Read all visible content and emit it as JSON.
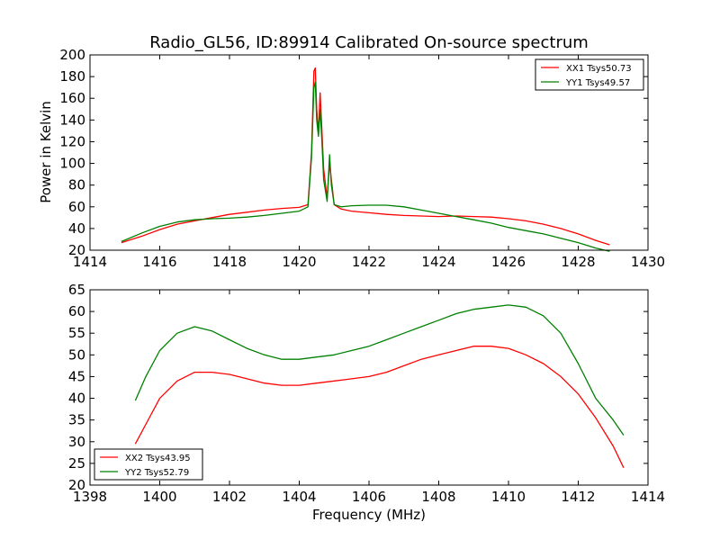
{
  "chart_data": [
    {
      "type": "line",
      "title": "Radio_GL56, ID:89914 Calibrated On-source spectrum",
      "xlabel": "",
      "ylabel": "Power in Kelvin",
      "xlim": [
        1414,
        1430
      ],
      "ylim": [
        20,
        200
      ],
      "xticks": [
        1414,
        1416,
        1418,
        1420,
        1422,
        1424,
        1426,
        1428,
        1430
      ],
      "yticks": [
        20,
        40,
        60,
        80,
        100,
        120,
        140,
        160,
        180,
        200
      ],
      "legend_position": "top-right",
      "series": [
        {
          "name": "XX1 Tsys50.73",
          "color": "#ff0000",
          "x": [
            1414.9,
            1415.5,
            1416.0,
            1416.5,
            1417.0,
            1417.5,
            1418.0,
            1418.5,
            1419.0,
            1419.5,
            1420.0,
            1420.25,
            1420.35,
            1420.42,
            1420.46,
            1420.5,
            1420.55,
            1420.6,
            1420.65,
            1420.7,
            1420.8,
            1420.87,
            1420.92,
            1421.0,
            1421.2,
            1421.5,
            1422.0,
            1422.5,
            1423.0,
            1423.5,
            1424.0,
            1424.5,
            1425.0,
            1425.5,
            1426.0,
            1426.5,
            1427.0,
            1427.5,
            1428.0,
            1428.5,
            1428.9
          ],
          "y": [
            27,
            33,
            39,
            44,
            47,
            50,
            53,
            55,
            57,
            58.5,
            59.5,
            62,
            110,
            185,
            188,
            150,
            128,
            165,
            130,
            95,
            68,
            100,
            85,
            62,
            58,
            56,
            54.5,
            53,
            52,
            51.5,
            51,
            51.5,
            51,
            50.5,
            49,
            47,
            44,
            40,
            35,
            29,
            25
          ]
        },
        {
          "name": "YY1 Tsys49.57",
          "color": "#008000",
          "x": [
            1414.9,
            1415.5,
            1416.0,
            1416.5,
            1417.0,
            1417.5,
            1418.0,
            1418.5,
            1419.0,
            1419.5,
            1420.0,
            1420.25,
            1420.35,
            1420.42,
            1420.46,
            1420.5,
            1420.55,
            1420.6,
            1420.65,
            1420.7,
            1420.8,
            1420.87,
            1420.92,
            1421.0,
            1421.2,
            1421.5,
            1422.0,
            1422.5,
            1423.0,
            1423.5,
            1424.0,
            1424.5,
            1425.0,
            1425.5,
            1426.0,
            1426.5,
            1427.0,
            1427.5,
            1428.0,
            1428.5,
            1428.9
          ],
          "y": [
            28,
            36,
            42,
            46,
            48,
            49,
            49.5,
            50.5,
            52,
            54,
            56,
            60,
            105,
            170,
            175,
            140,
            125,
            150,
            120,
            85,
            65,
            108,
            80,
            62,
            60,
            61,
            61.5,
            61.5,
            60,
            57,
            54,
            51,
            48,
            45,
            41,
            38,
            35,
            31,
            27,
            22,
            19
          ]
        }
      ]
    },
    {
      "type": "line",
      "title": "",
      "xlabel": "Frequency (MHz)",
      "ylabel": "",
      "xlim": [
        1398,
        1414
      ],
      "ylim": [
        20,
        65
      ],
      "xticks": [
        1398,
        1400,
        1402,
        1404,
        1406,
        1408,
        1410,
        1412,
        1414
      ],
      "yticks": [
        20,
        25,
        30,
        35,
        40,
        45,
        50,
        55,
        60,
        65
      ],
      "legend_position": "bottom-left",
      "series": [
        {
          "name": "XX2 Tsys43.95",
          "color": "#ff0000",
          "x": [
            1399.3,
            1399.6,
            1400.0,
            1400.5,
            1401.0,
            1401.5,
            1402.0,
            1402.5,
            1403.0,
            1403.5,
            1404.0,
            1404.5,
            1405.0,
            1405.5,
            1406.0,
            1406.5,
            1407.0,
            1407.5,
            1408.0,
            1408.5,
            1409.0,
            1409.5,
            1410.0,
            1410.5,
            1411.0,
            1411.5,
            1412.0,
            1412.5,
            1413.0,
            1413.3
          ],
          "y": [
            29.5,
            34,
            40,
            44,
            46,
            46,
            45.5,
            44.5,
            43.5,
            43,
            43,
            43.5,
            44,
            44.5,
            45,
            46,
            47.5,
            49,
            50,
            51,
            52,
            52,
            51.5,
            50,
            48,
            45,
            41,
            35.5,
            29,
            24
          ]
        },
        {
          "name": "YY2 Tsys52.79",
          "color": "#008000",
          "x": [
            1399.3,
            1399.6,
            1400.0,
            1400.5,
            1401.0,
            1401.5,
            1402.0,
            1402.5,
            1403.0,
            1403.5,
            1404.0,
            1404.5,
            1405.0,
            1405.5,
            1406.0,
            1406.5,
            1407.0,
            1407.5,
            1408.0,
            1408.5,
            1409.0,
            1409.5,
            1410.0,
            1410.5,
            1411.0,
            1411.5,
            1412.0,
            1412.5,
            1413.0,
            1413.3
          ],
          "y": [
            39.5,
            45,
            51,
            55,
            56.5,
            55.5,
            53.5,
            51.5,
            50,
            49,
            49,
            49.5,
            50,
            51,
            52,
            53.5,
            55,
            56.5,
            58,
            59.5,
            60.5,
            61,
            61.5,
            61,
            59,
            55,
            48,
            40,
            35,
            31.5
          ]
        }
      ]
    }
  ]
}
